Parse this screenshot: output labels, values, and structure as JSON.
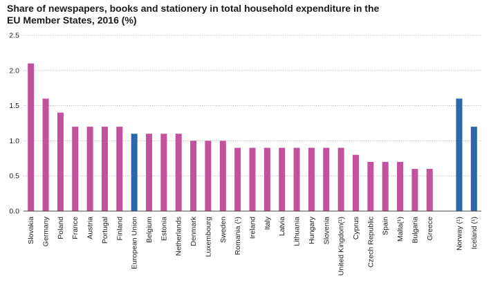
{
  "chart_data": {
    "type": "bar",
    "title": "Share of newspapers, books and stationery in total household expenditure in the\nEU Member States, 2016 (%)",
    "xlabel": "",
    "ylabel": "",
    "ylim": [
      0,
      2.5
    ],
    "yticks": [
      "0.0",
      "0.5",
      "1.0",
      "1.5",
      "2.0",
      "2.5"
    ],
    "grid": true,
    "categories": [
      "Slovakia",
      "Germany",
      "Poland",
      "France",
      "Austria",
      "Portugal",
      "Finland",
      "European Union",
      "Belgium",
      "Estonia",
      "Netherlands",
      "Denmark",
      "Luxembourg",
      "Sweden",
      "Romania (¹)",
      "Ireland",
      "Italy",
      "Latvia",
      "Lithuania",
      "Hungary",
      "Slovenia",
      "United Kingdom(¹)",
      "Cyprus",
      "Czech Republic",
      "Spain",
      "Malta(¹)",
      "Bulgaria",
      "Greece",
      "",
      "Norway (¹)",
      "Iceland (¹)"
    ],
    "values": [
      2.1,
      1.6,
      1.4,
      1.2,
      1.2,
      1.2,
      1.2,
      1.1,
      1.1,
      1.1,
      1.1,
      1.0,
      1.0,
      1.0,
      0.9,
      0.9,
      0.9,
      0.9,
      0.9,
      0.9,
      0.9,
      0.9,
      0.8,
      0.7,
      0.7,
      0.7,
      0.6,
      0.6,
      null,
      1.6,
      1.2
    ],
    "groups": [
      "member",
      "member",
      "member",
      "member",
      "member",
      "member",
      "member",
      "eu",
      "member",
      "member",
      "member",
      "member",
      "member",
      "member",
      "member",
      "member",
      "member",
      "member",
      "member",
      "member",
      "member",
      "member",
      "member",
      "member",
      "member",
      "member",
      "member",
      "member",
      "gap",
      "efta",
      "efta"
    ],
    "colors": {
      "member": "#c2519e",
      "eu": "#2c67ad",
      "efta": "#2c67ad",
      "grid": "#b5b5b5",
      "axis": "#444444"
    }
  }
}
